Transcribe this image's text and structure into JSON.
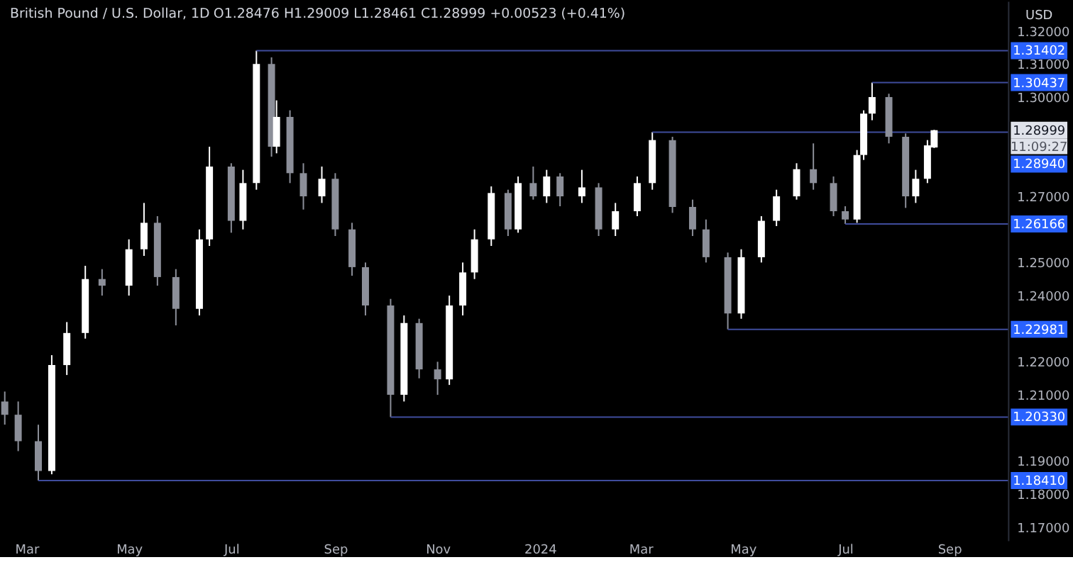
{
  "chart_data": {
    "type": "candlestick",
    "title": "British Pound / U.S. Dollar, 1D",
    "subtitle": "O1.28476  H1.29009  L1.28461  C1.28999  +0.00523 (+0.41%)",
    "ylabel": "USD",
    "x": [
      "2023-02-16",
      "2023-02-24",
      "2023-03-08",
      "2023-03-16",
      "2023-03-25",
      "2023-04-05",
      "2023-04-15",
      "2023-05-01",
      "2023-05-10",
      "2023-05-18",
      "2023-05-29",
      "2023-06-12",
      "2023-06-18",
      "2023-07-01",
      "2023-07-08",
      "2023-07-16",
      "2023-07-25",
      "2023-07-28",
      "2023-08-05",
      "2023-08-13",
      "2023-08-24",
      "2023-09-01",
      "2023-09-11",
      "2023-09-19",
      "2023-10-04",
      "2023-10-12",
      "2023-10-21",
      "2023-11-01",
      "2023-11-08",
      "2023-11-16",
      "2023-11-23",
      "2023-12-03",
      "2023-12-13",
      "2023-12-19",
      "2023-12-28",
      "2024-01-05",
      "2024-01-13",
      "2024-01-26",
      "2024-02-05",
      "2024-02-15",
      "2024-02-28",
      "2024-03-08",
      "2024-03-20",
      "2024-04-01",
      "2024-04-09",
      "2024-04-22",
      "2024-04-30",
      "2024-05-12",
      "2024-05-21",
      "2024-06-02",
      "2024-06-12",
      "2024-06-24",
      "2024-07-01",
      "2024-07-08",
      "2024-07-12",
      "2024-07-17",
      "2024-07-27",
      "2024-08-06",
      "2024-08-12",
      "2024-08-19",
      "2024-08-23"
    ],
    "ohlc": [
      [
        1.208,
        1.211,
        1.201,
        1.204
      ],
      [
        1.204,
        1.208,
        1.193,
        1.196
      ],
      [
        1.196,
        1.201,
        1.1841,
        1.187
      ],
      [
        1.187,
        1.222,
        1.186,
        1.219
      ],
      [
        1.219,
        1.232,
        1.216,
        1.2287
      ],
      [
        1.2287,
        1.249,
        1.227,
        1.245
      ],
      [
        1.245,
        1.248,
        1.24,
        1.243
      ],
      [
        1.243,
        1.257,
        1.24,
        1.254
      ],
      [
        1.254,
        1.268,
        1.252,
        1.262
      ],
      [
        1.262,
        1.264,
        1.243,
        1.2456
      ],
      [
        1.2456,
        1.248,
        1.231,
        1.236
      ],
      [
        1.236,
        1.26,
        1.234,
        1.257
      ],
      [
        1.257,
        1.285,
        1.255,
        1.279
      ],
      [
        1.279,
        1.28,
        1.259,
        1.2626
      ],
      [
        1.2626,
        1.278,
        1.26,
        1.274
      ],
      [
        1.274,
        1.31402,
        1.272,
        1.31
      ],
      [
        1.31,
        1.312,
        1.282,
        1.285
      ],
      [
        1.285,
        1.299,
        1.283,
        1.294
      ],
      [
        1.294,
        1.296,
        1.274,
        1.277
      ],
      [
        1.277,
        1.28,
        1.266,
        1.27
      ],
      [
        1.27,
        1.279,
        1.268,
        1.2753
      ],
      [
        1.2753,
        1.277,
        1.258,
        1.26
      ],
      [
        1.26,
        1.262,
        1.246,
        1.2486
      ],
      [
        1.2486,
        1.25,
        1.234,
        1.237
      ],
      [
        1.237,
        1.239,
        1.2033,
        1.21
      ],
      [
        1.21,
        1.234,
        1.208,
        1.2317
      ],
      [
        1.2317,
        1.233,
        1.215,
        1.2177
      ],
      [
        1.2177,
        1.22,
        1.21,
        1.2147
      ],
      [
        1.2147,
        1.24,
        1.213,
        1.237
      ],
      [
        1.237,
        1.25,
        1.234,
        1.247
      ],
      [
        1.247,
        1.26,
        1.245,
        1.257
      ],
      [
        1.257,
        1.273,
        1.255,
        1.271
      ],
      [
        1.271,
        1.272,
        1.258,
        1.26
      ],
      [
        1.26,
        1.276,
        1.259,
        1.274
      ],
      [
        1.274,
        1.279,
        1.269,
        1.27
      ],
      [
        1.27,
        1.278,
        1.268,
        1.276
      ],
      [
        1.276,
        1.277,
        1.267,
        1.27
      ],
      [
        1.27,
        1.278,
        1.268,
        1.2727
      ],
      [
        1.2727,
        1.274,
        1.258,
        1.26
      ],
      [
        1.26,
        1.268,
        1.258,
        1.2655
      ],
      [
        1.2655,
        1.276,
        1.264,
        1.274
      ],
      [
        1.274,
        1.2894,
        1.272,
        1.287
      ],
      [
        1.287,
        1.288,
        1.265,
        1.2668
      ],
      [
        1.2668,
        1.269,
        1.258,
        1.26
      ],
      [
        1.26,
        1.263,
        1.25,
        1.2516
      ],
      [
        1.2516,
        1.253,
        1.22981,
        1.2346
      ],
      [
        1.2346,
        1.254,
        1.233,
        1.2516
      ],
      [
        1.2516,
        1.264,
        1.25,
        1.2626
      ],
      [
        1.2626,
        1.272,
        1.261,
        1.27
      ],
      [
        1.27,
        1.28,
        1.269,
        1.2782
      ],
      [
        1.2782,
        1.286,
        1.272,
        1.274
      ],
      [
        1.274,
        1.276,
        1.264,
        1.2655
      ],
      [
        1.2655,
        1.267,
        1.26166,
        1.263
      ],
      [
        1.263,
        1.284,
        1.262,
        1.2825
      ],
      [
        1.2825,
        1.296,
        1.281,
        1.295
      ],
      [
        1.295,
        1.30437,
        1.293,
        1.3
      ],
      [
        1.3,
        1.301,
        1.286,
        1.288
      ],
      [
        1.288,
        1.289,
        1.2665,
        1.27
      ],
      [
        1.27,
        1.278,
        1.268,
        1.2753
      ],
      [
        1.2753,
        1.287,
        1.274,
        1.2854
      ],
      [
        1.28476,
        1.29009,
        1.28461,
        1.28999
      ]
    ],
    "colors": [
      "#8c8f99",
      "#8c8f99",
      "#8c8f99",
      "#ffffff",
      "#ffffff",
      "#ffffff",
      "#8c8f99",
      "#ffffff",
      "#ffffff",
      "#8c8f99",
      "#8c8f99",
      "#ffffff",
      "#ffffff",
      "#8c8f99",
      "#ffffff",
      "#ffffff",
      "#8c8f99",
      "#ffffff",
      "#8c8f99",
      "#8c8f99",
      "#ffffff",
      "#8c8f99",
      "#8c8f99",
      "#8c8f99",
      "#8c8f99",
      "#ffffff",
      "#8c8f99",
      "#8c8f99",
      "#ffffff",
      "#ffffff",
      "#ffffff",
      "#ffffff",
      "#8c8f99",
      "#ffffff",
      "#8c8f99",
      "#ffffff",
      "#8c8f99",
      "#ffffff",
      "#8c8f99",
      "#ffffff",
      "#ffffff",
      "#ffffff",
      "#8c8f99",
      "#8c8f99",
      "#8c8f99",
      "#8c8f99",
      "#ffffff",
      "#ffffff",
      "#ffffff",
      "#ffffff",
      "#8c8f99",
      "#8c8f99",
      "#8c8f99",
      "#ffffff",
      "#ffffff",
      "#ffffff",
      "#8c8f99",
      "#8c8f99",
      "#ffffff",
      "#ffffff",
      "#ffffff"
    ],
    "xlim": [
      "2023-02-14",
      "2024-10-06"
    ],
    "xticks": [
      {
        "value": "2023-03-01",
        "label": "Mar"
      },
      {
        "value": "2023-05-01",
        "label": "May"
      },
      {
        "value": "2023-07-01",
        "label": "Jul"
      },
      {
        "value": "2023-09-01",
        "label": "Sep"
      },
      {
        "value": "2023-11-01",
        "label": "Nov"
      },
      {
        "value": "2024-01-01",
        "label": "2024"
      },
      {
        "value": "2024-03-01",
        "label": "Mar"
      },
      {
        "value": "2024-05-01",
        "label": "May"
      },
      {
        "value": "2024-07-01",
        "label": "Jul"
      },
      {
        "value": "2024-09-01",
        "label": "Sep"
      }
    ],
    "ylim": [
      1.166,
      1.329
    ],
    "yticks": [
      {
        "value": 1.17,
        "label": "1.17000"
      },
      {
        "value": 1.18,
        "label": "1.18000"
      },
      {
        "value": 1.19,
        "label": "1.19000"
      },
      {
        "value": 1.21,
        "label": "1.21000"
      },
      {
        "value": 1.22,
        "label": "1.22000"
      },
      {
        "value": 1.24,
        "label": "1.24000"
      },
      {
        "value": 1.25,
        "label": "1.25000"
      },
      {
        "value": 1.27,
        "label": "1.27000"
      },
      {
        "value": 1.3,
        "label": "1.30000"
      },
      {
        "value": 1.31,
        "label": "1.31000"
      },
      {
        "value": 1.32,
        "label": "1.32000"
      }
    ],
    "ref_lines": [
      {
        "axis": "y",
        "value": 1.31402,
        "label": "1.31402",
        "color": "#3f4c9c"
      },
      {
        "axis": "y",
        "value": 1.30437,
        "label": "1.30437",
        "color": "#3f4c9c"
      },
      {
        "axis": "y",
        "value": 1.2894,
        "label": "1.28940",
        "color": "#3f4c9c"
      },
      {
        "axis": "y",
        "value": 1.26166,
        "label": "1.26166",
        "color": "#3f4c9c"
      },
      {
        "axis": "y",
        "value": 1.22981,
        "label": "1.22981",
        "color": "#3f4c9c"
      },
      {
        "axis": "y",
        "value": 1.2033,
        "label": "1.20330",
        "color": "#3f4c9c"
      },
      {
        "axis": "y",
        "value": 1.1841,
        "label": "1.18410",
        "color": "#3f4c9c"
      }
    ],
    "annotations": [
      {
        "text": "1.28999",
        "y": 1.28999
      },
      "11:09:27"
    ],
    "grid": false
  }
}
